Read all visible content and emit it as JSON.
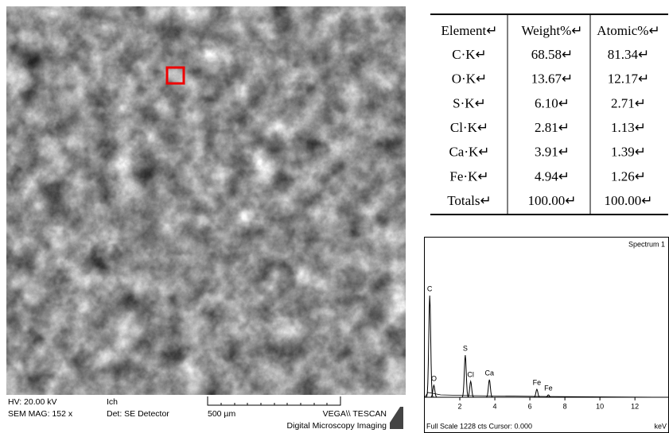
{
  "sem": {
    "hv": "HV:  20.00 kV",
    "ich": "Ich",
    "mag": "SEM MAG: 152 x",
    "detector": "Det: SE Detector",
    "scale": "500 µm",
    "brand": "VEGA\\\\ TESCAN",
    "subtitle": "Digital Microscopy Imaging"
  },
  "table": {
    "header": [
      "Element↵",
      "Weight%↵",
      "Atomic%↵"
    ],
    "rows": [
      [
        "C·K↵",
        "68.58↵",
        "81.34↵"
      ],
      [
        "O·K↵",
        "13.67↵",
        "12.17↵"
      ],
      [
        "S·K↵",
        "6.10↵",
        "2.71↵"
      ],
      [
        "Cl·K↵",
        "2.81↵",
        "1.13↵"
      ],
      [
        "Ca·K↵",
        "3.91↵",
        "1.39↵"
      ],
      [
        "Fe·K↵",
        "4.94↵",
        "1.26↵"
      ],
      [
        "Totals↵",
        "100.00↵",
        "100.00↵"
      ]
    ]
  },
  "chart_data": {
    "type": "spectrum",
    "title": "Spectrum 1",
    "x_label": "keV",
    "footer": "Full Scale 1228 cts Cursor: 0.000",
    "xlim": [
      0,
      13.9
    ],
    "xticks": [
      2,
      4,
      6,
      8,
      10,
      12
    ],
    "ylim": [
      0,
      1228
    ],
    "color": "#000000",
    "peaks": [
      {
        "label": "C",
        "x": 0.28,
        "value": 806
      },
      {
        "label": "O",
        "x": 0.52,
        "value": 95
      },
      {
        "label": "S",
        "x": 2.31,
        "value": 334
      },
      {
        "label": "Cl",
        "x": 2.62,
        "value": 126
      },
      {
        "label": "Ca",
        "x": 3.69,
        "value": 139
      },
      {
        "label": "Fe",
        "x": 6.4,
        "value": 63
      },
      {
        "label": "Fe",
        "x": 7.06,
        "value": 19
      }
    ]
  }
}
